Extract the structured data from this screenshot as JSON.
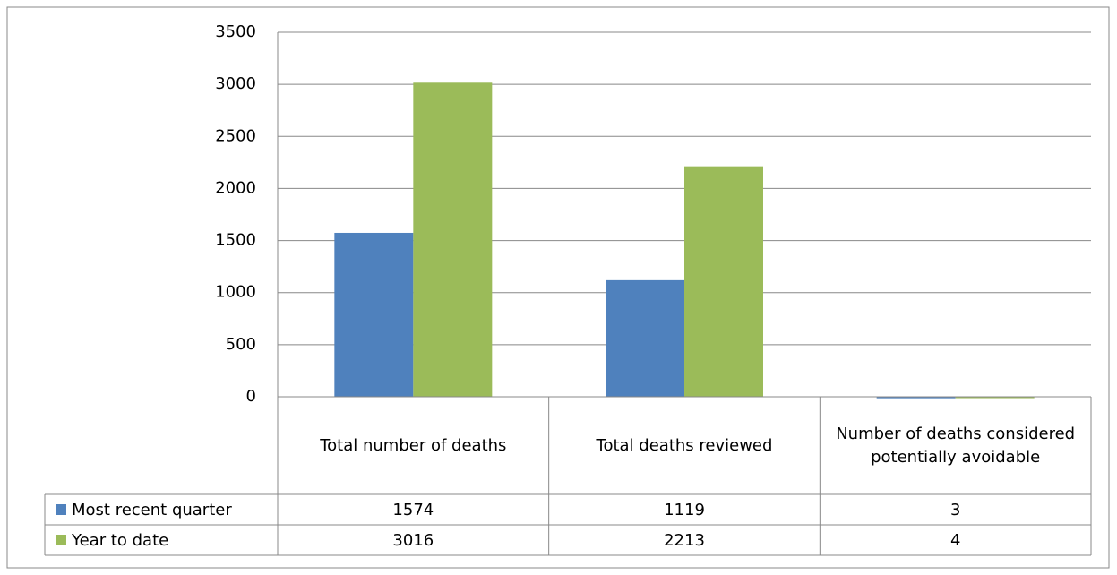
{
  "chart_data": {
    "type": "bar",
    "categories": [
      "Total number of deaths",
      "Total deaths reviewed",
      "Number of deaths considered potentially avoidable"
    ],
    "series": [
      {
        "name": "Most recent quarter",
        "color": "#4f81bd",
        "values": [
          1574,
          1119,
          3
        ]
      },
      {
        "name": "Year to date",
        "color": "#9bbb59",
        "values": [
          3016,
          2213,
          4
        ]
      }
    ],
    "ylim": [
      0,
      3500
    ],
    "yticks": [
      0,
      500,
      1000,
      1500,
      2000,
      2500,
      3000,
      3500
    ],
    "grid": true,
    "data_table": true
  }
}
